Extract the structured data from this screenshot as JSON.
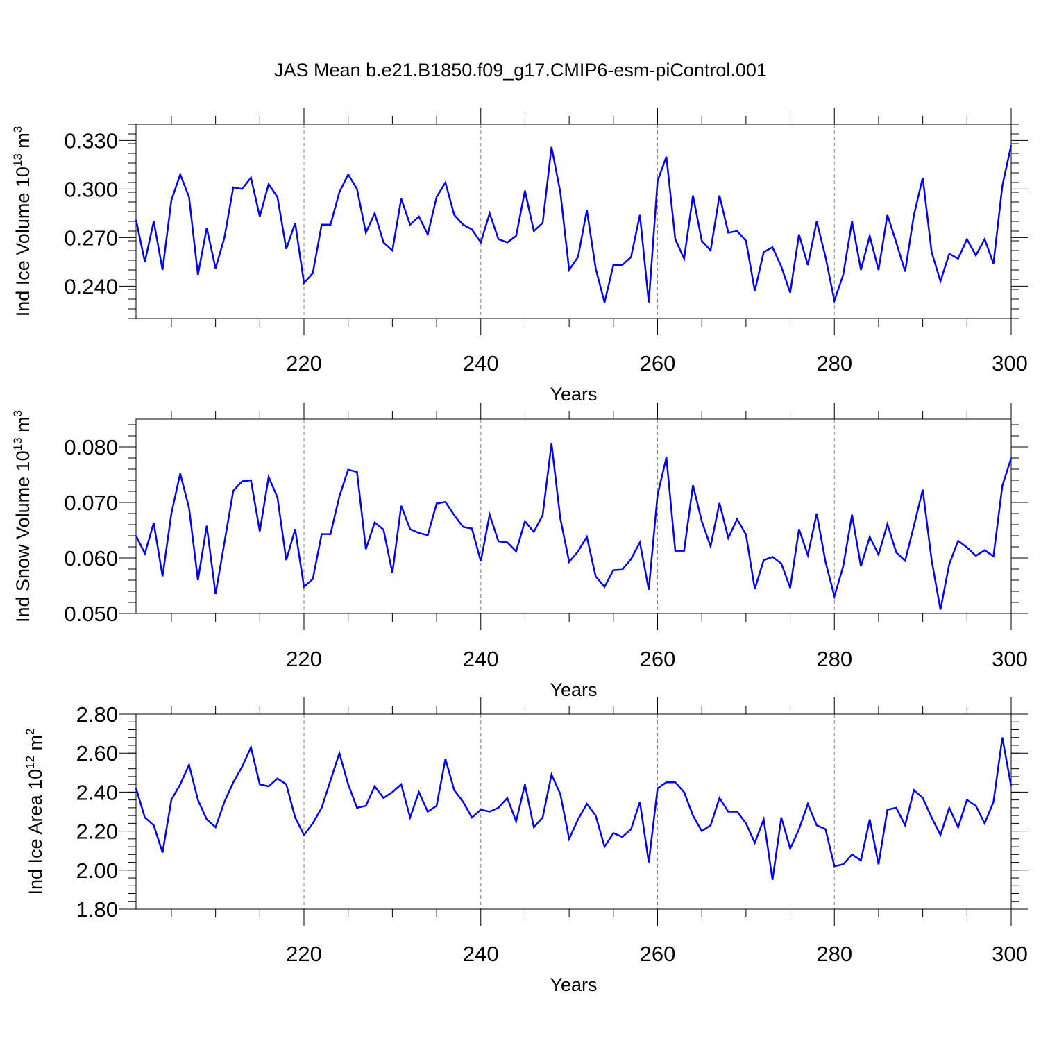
{
  "title": "JAS Mean b.e21.B1850.f09_g17.CMIP6-esm-piControl.001",
  "colors": {
    "line": "#0000ff",
    "axis": "#000000",
    "grid": "#888888"
  },
  "chart_data": [
    {
      "type": "line",
      "ylabel_main": "Ind Ice Volume 10",
      "ylabel_exp": "13",
      "ylabel_unit": " m",
      "ylabel_unit_exp": "3",
      "xlabel": "Years",
      "xlim": [
        201,
        300
      ],
      "ylim": [
        0.22,
        0.34
      ],
      "yticks": [
        0.24,
        0.27,
        0.3,
        0.33
      ],
      "ytick_labels": [
        "0.240",
        "0.270",
        "0.300",
        "0.330"
      ],
      "xticks": [
        220,
        240,
        260,
        280,
        300
      ],
      "xtick_labels": [
        "220",
        "240",
        "260",
        "280",
        "300"
      ],
      "grid_x": [
        220,
        240,
        260,
        280
      ],
      "x_start": 201,
      "values": [
        0.281,
        0.255,
        0.28,
        0.25,
        0.293,
        0.309,
        0.295,
        0.247,
        0.276,
        0.251,
        0.27,
        0.301,
        0.3,
        0.307,
        0.283,
        0.303,
        0.295,
        0.263,
        0.279,
        0.242,
        0.248,
        0.278,
        0.278,
        0.298,
        0.309,
        0.3,
        0.273,
        0.285,
        0.267,
        0.262,
        0.294,
        0.278,
        0.283,
        0.272,
        0.295,
        0.304,
        0.284,
        0.278,
        0.275,
        0.267,
        0.285,
        0.269,
        0.267,
        0.271,
        0.299,
        0.274,
        0.279,
        0.326,
        0.298,
        0.25,
        0.258,
        0.287,
        0.251,
        0.23,
        0.253,
        0.253,
        0.258,
        0.284,
        0.23,
        0.305,
        0.32,
        0.269,
        0.257,
        0.296,
        0.268,
        0.262,
        0.296,
        0.273,
        0.274,
        0.268,
        0.237,
        0.261,
        0.264,
        0.252,
        0.236,
        0.272,
        0.253,
        0.28,
        0.258,
        0.231,
        0.247,
        0.28,
        0.25,
        0.271,
        0.25,
        0.284,
        0.267,
        0.249,
        0.284,
        0.307,
        0.261,
        0.243,
        0.26,
        0.257,
        0.269,
        0.259,
        0.269,
        0.254,
        0.302,
        0.327
      ]
    },
    {
      "type": "line",
      "ylabel_main": "Ind Snow Volume 10",
      "ylabel_exp": "13",
      "ylabel_unit": " m",
      "ylabel_unit_exp": "3",
      "xlabel": "Years",
      "xlim": [
        201,
        300
      ],
      "ylim": [
        0.05,
        0.085
      ],
      "yticks": [
        0.05,
        0.06,
        0.07,
        0.08
      ],
      "ytick_labels": [
        "0.050",
        "0.060",
        "0.070",
        "0.080"
      ],
      "xticks": [
        220,
        240,
        260,
        280,
        300
      ],
      "xtick_labels": [
        "220",
        "240",
        "260",
        "280",
        "300"
      ],
      "grid_x": [
        220,
        240,
        260,
        280
      ],
      "x_start": 201,
      "values": [
        0.064,
        0.0608,
        0.0663,
        0.0567,
        0.068,
        0.0752,
        0.069,
        0.056,
        0.0658,
        0.0535,
        0.0628,
        0.0721,
        0.0738,
        0.074,
        0.0648,
        0.0746,
        0.0709,
        0.0596,
        0.0652,
        0.0548,
        0.0562,
        0.0643,
        0.0643,
        0.0711,
        0.0759,
        0.0755,
        0.0616,
        0.0664,
        0.0651,
        0.0573,
        0.0694,
        0.0652,
        0.0645,
        0.0641,
        0.0698,
        0.0701,
        0.0677,
        0.0656,
        0.0653,
        0.0594,
        0.0678,
        0.063,
        0.0628,
        0.0612,
        0.0666,
        0.0647,
        0.0677,
        0.0806,
        0.0671,
        0.0593,
        0.0612,
        0.0638,
        0.0567,
        0.0548,
        0.0578,
        0.0579,
        0.0598,
        0.0628,
        0.0543,
        0.0714,
        0.0781,
        0.0613,
        0.0613,
        0.0731,
        0.0666,
        0.0621,
        0.0699,
        0.0636,
        0.067,
        0.0642,
        0.0544,
        0.0596,
        0.0602,
        0.059,
        0.0546,
        0.0652,
        0.0605,
        0.068,
        0.0593,
        0.0531,
        0.0585,
        0.0678,
        0.0585,
        0.0638,
        0.0606,
        0.0661,
        0.061,
        0.0595,
        0.0658,
        0.0723,
        0.0596,
        0.0507,
        0.0589,
        0.0631,
        0.0619,
        0.0604,
        0.0614,
        0.0603,
        0.073,
        0.078
      ]
    },
    {
      "type": "line",
      "ylabel_main": "Ind Ice Area 10",
      "ylabel_exp": "12",
      "ylabel_unit": " m",
      "ylabel_unit_exp": "2",
      "xlabel": "Years",
      "xlim": [
        201,
        300
      ],
      "ylim": [
        1.8,
        2.8
      ],
      "yticks": [
        1.8,
        2.0,
        2.2,
        2.4,
        2.6,
        2.8
      ],
      "ytick_labels": [
        "1.80",
        "2.00",
        "2.20",
        "2.40",
        "2.60",
        "2.80"
      ],
      "xticks": [
        220,
        240,
        260,
        280,
        300
      ],
      "xtick_labels": [
        "220",
        "240",
        "260",
        "280",
        "300"
      ],
      "grid_x": [
        220,
        240,
        260,
        280
      ],
      "x_start": 201,
      "values": [
        2.42,
        2.27,
        2.23,
        2.09,
        2.36,
        2.44,
        2.54,
        2.36,
        2.26,
        2.22,
        2.35,
        2.45,
        2.53,
        2.63,
        2.44,
        2.43,
        2.47,
        2.44,
        2.27,
        2.18,
        2.24,
        2.32,
        2.46,
        2.6,
        2.44,
        2.32,
        2.33,
        2.43,
        2.37,
        2.4,
        2.44,
        2.27,
        2.4,
        2.3,
        2.33,
        2.57,
        2.41,
        2.35,
        2.27,
        2.31,
        2.3,
        2.32,
        2.37,
        2.25,
        2.44,
        2.22,
        2.27,
        2.49,
        2.39,
        2.16,
        2.26,
        2.34,
        2.28,
        2.12,
        2.19,
        2.17,
        2.21,
        2.35,
        2.04,
        2.42,
        2.45,
        2.45,
        2.4,
        2.28,
        2.2,
        2.23,
        2.37,
        2.3,
        2.3,
        2.24,
        2.14,
        2.26,
        1.95,
        2.27,
        2.11,
        2.21,
        2.34,
        2.23,
        2.21,
        2.02,
        2.03,
        2.08,
        2.05,
        2.26,
        2.03,
        2.31,
        2.32,
        2.23,
        2.41,
        2.37,
        2.27,
        2.18,
        2.32,
        2.22,
        2.36,
        2.33,
        2.24,
        2.35,
        2.68,
        2.43
      ]
    }
  ]
}
